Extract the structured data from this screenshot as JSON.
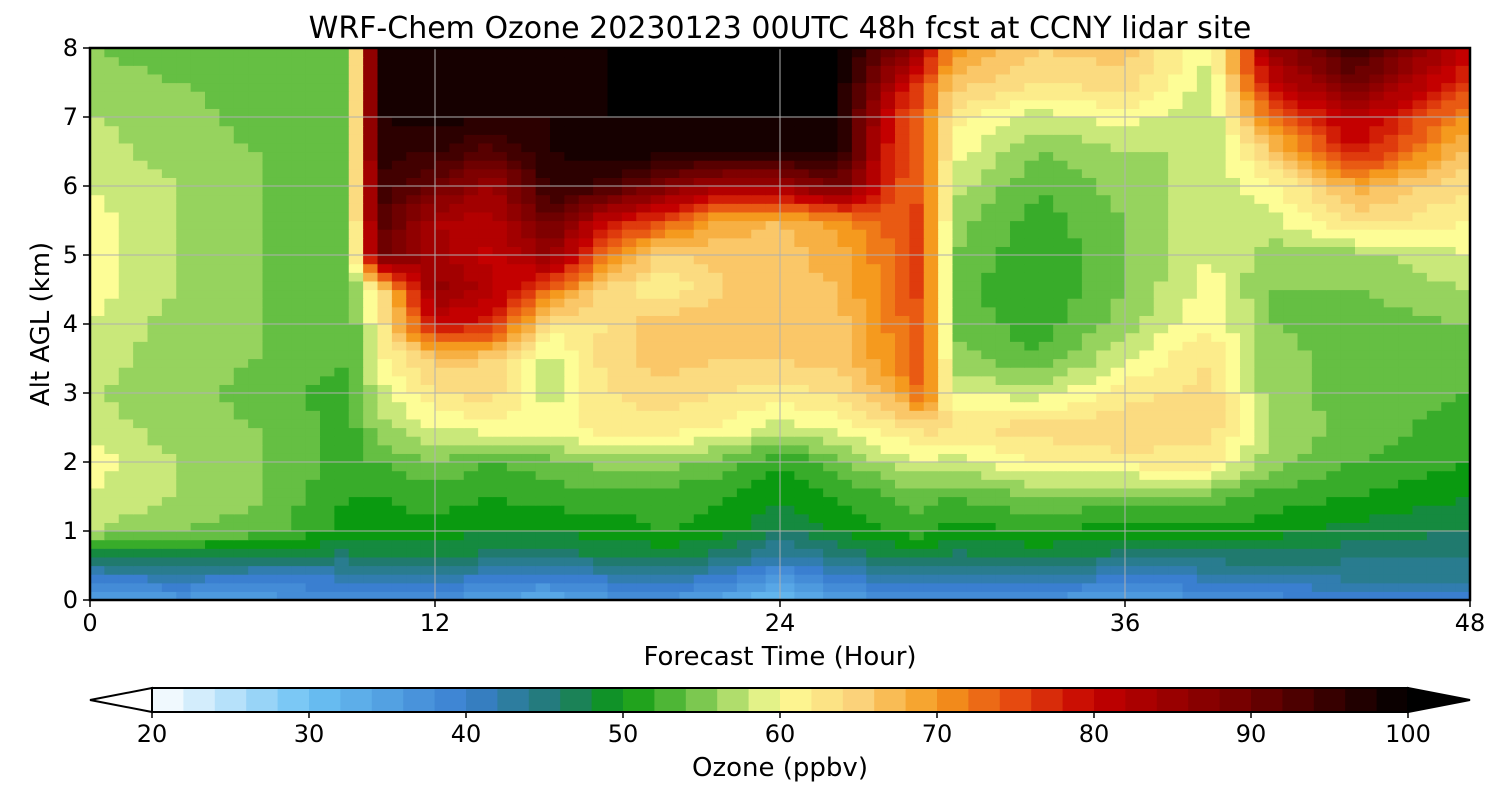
{
  "chart_data": {
    "type": "heatmap",
    "title": "WRF-Chem Ozone  20230123 00UTC 48h fcst at CCNY lidar site",
    "xlabel": "Forecast Time (Hour)",
    "ylabel": "Alt AGL (km)",
    "xlim": [
      0,
      48
    ],
    "ylim": [
      0,
      8
    ],
    "x_ticks": [
      "0",
      "12",
      "24",
      "36",
      "48"
    ],
    "y_ticks": [
      "0",
      "1",
      "2",
      "3",
      "4",
      "5",
      "6",
      "7",
      "8"
    ],
    "grid": true,
    "x": [
      0,
      3,
      6,
      9,
      10,
      12,
      14,
      16,
      18,
      20,
      22,
      24,
      26,
      28,
      29,
      30,
      33,
      36,
      39,
      41,
      44,
      48
    ],
    "y": [
      0,
      0.3,
      0.7,
      1,
      1.5,
      2,
      2.5,
      3,
      3.5,
      4,
      4.5,
      5,
      5.5,
      6,
      6.5,
      7,
      7.5,
      8
    ],
    "z": [
      [
        35,
        36,
        36,
        37,
        36,
        37,
        35,
        33,
        36,
        37,
        34,
        30,
        35,
        37,
        38,
        36,
        37,
        34,
        37,
        38,
        39,
        40
      ],
      [
        40,
        41,
        40,
        41,
        41,
        42,
        40,
        39,
        41,
        42,
        40,
        36,
        40,
        42,
        43,
        41,
        42,
        40,
        41,
        42,
        43,
        44
      ],
      [
        48,
        49,
        48,
        47,
        48,
        48,
        47,
        46,
        48,
        48,
        47,
        43,
        46,
        48,
        49,
        47,
        48,
        47,
        47,
        47,
        46,
        45
      ],
      [
        57,
        55,
        54,
        50,
        50,
        50,
        49,
        49,
        50,
        51,
        50,
        47,
        49,
        51,
        52,
        50,
        51,
        50,
        50,
        50,
        48,
        47
      ],
      [
        59,
        57,
        55,
        51,
        51,
        52,
        51,
        52,
        52,
        52,
        51,
        49,
        51,
        53,
        54,
        53,
        55,
        54,
        54,
        52,
        51,
        49
      ],
      [
        60,
        57,
        55,
        52,
        53,
        55,
        53,
        54,
        56,
        56,
        54,
        51,
        54,
        58,
        59,
        58,
        61,
        62,
        62,
        56,
        53,
        51
      ],
      [
        58,
        56,
        55,
        52,
        56,
        59,
        60,
        60,
        62,
        62,
        61,
        58,
        60,
        62,
        64,
        63,
        64,
        65,
        64,
        57,
        54,
        52
      ],
      [
        57,
        56,
        54,
        52,
        58,
        63,
        64,
        58,
        63,
        64,
        63,
        62,
        63,
        68,
        74,
        59,
        58,
        62,
        64,
        56,
        54,
        53
      ],
      [
        58,
        56,
        55,
        53,
        60,
        66,
        65,
        58,
        64,
        66,
        65,
        65,
        66,
        71,
        75,
        56,
        53,
        59,
        63,
        56,
        54,
        54
      ],
      [
        59,
        56,
        55,
        53,
        61,
        79,
        78,
        62,
        63,
        67,
        66,
        65,
        66,
        72,
        75,
        54,
        52,
        56,
        61,
        55,
        54,
        55
      ],
      [
        60,
        57,
        55,
        53,
        62,
        86,
        82,
        73,
        64,
        61,
        65,
        66,
        67,
        73,
        76,
        54,
        51,
        55,
        60,
        55,
        55,
        57
      ],
      [
        60,
        57,
        55,
        53,
        90,
        84,
        80,
        86,
        72,
        64,
        66,
        66,
        68,
        73,
        76,
        55,
        51,
        55,
        59,
        56,
        56,
        59
      ],
      [
        60,
        57,
        55,
        53,
        93,
        83,
        82,
        90,
        80,
        75,
        68,
        67,
        70,
        74,
        76,
        56,
        52,
        55,
        59,
        58,
        64,
        61
      ],
      [
        59,
        57,
        55,
        53,
        95,
        90,
        84,
        96,
        94,
        88,
        84,
        84,
        90,
        75,
        74,
        58,
        53,
        56,
        58,
        60,
        68,
        63
      ],
      [
        58,
        56,
        55,
        53,
        96,
        95,
        92,
        97,
        98,
        98,
        97,
        97,
        98,
        76,
        74,
        60,
        55,
        57,
        57,
        65,
        79,
        66
      ],
      [
        57,
        56,
        54,
        53,
        97,
        98,
        97,
        97,
        99,
        99,
        99,
        99,
        99,
        77,
        73,
        62,
        58,
        60,
        57,
        72,
        82,
        70
      ],
      [
        56,
        55,
        54,
        53,
        98,
        99,
        98,
        98,
        99,
        99,
        99,
        99,
        99,
        82,
        75,
        66,
        63,
        64,
        58,
        80,
        90,
        76
      ],
      [
        55,
        54,
        53,
        53,
        98,
        99,
        99,
        99,
        99,
        99,
        99,
        99,
        99,
        90,
        82,
        70,
        65,
        66,
        59,
        85,
        95,
        80
      ]
    ],
    "colorbar": {
      "label": "Ozone  (ppbv)",
      "range": [
        20,
        100
      ],
      "ticks": [
        "20",
        "30",
        "40",
        "50",
        "60",
        "70",
        "80",
        "90",
        "100"
      ],
      "extend": "both",
      "stops": [
        {
          "value": 20,
          "color": "#ffffff"
        },
        {
          "value": 30,
          "color": "#6cc2f4"
        },
        {
          "value": 40,
          "color": "#3a7fd0"
        },
        {
          "value": 46,
          "color": "#207a6e"
        },
        {
          "value": 50,
          "color": "#0a9a10"
        },
        {
          "value": 55,
          "color": "#7cc850"
        },
        {
          "value": 60,
          "color": "#fdfd96"
        },
        {
          "value": 65,
          "color": "#fbd27a"
        },
        {
          "value": 70,
          "color": "#f59a1e"
        },
        {
          "value": 75,
          "color": "#e64a10"
        },
        {
          "value": 80,
          "color": "#c40000"
        },
        {
          "value": 90,
          "color": "#6e0000"
        },
        {
          "value": 100,
          "color": "#000000"
        }
      ]
    }
  }
}
